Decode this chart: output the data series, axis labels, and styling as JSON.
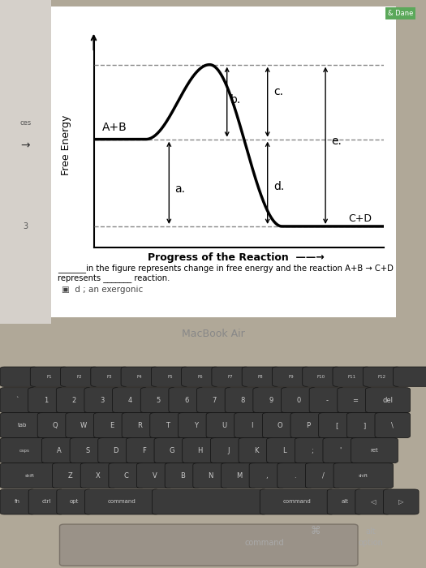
{
  "ylabel": "Free Energy",
  "xlabel": "Progress of the Reaction",
  "bg_color": "#ffffff",
  "curve_color": "#000000",
  "dash_color": "#888888",
  "text_color": "#000000",
  "levels": {
    "AB": 0.52,
    "peak": 0.88,
    "CD": 0.1
  },
  "labels": {
    "AB": "A+B",
    "CD": "C+D",
    "a": "a.",
    "b": "b.",
    "c": "c.",
    "d": "d.",
    "e": "e."
  },
  "screen_bg": "#e8e4e0",
  "laptop_body": "#b0a898",
  "keyboard_bg": "#2a2a2a",
  "key_color": "#3a3a3a",
  "key_text": "#cccccc",
  "bezel_color": "#1a1a1a",
  "macbook_label": "MacBook Air",
  "answer_text": "d ; an exergonic",
  "body_text1": "_______in the figure represents change in free energy and the reaction A+B → C+D",
  "body_text2": "represents _______ reaction.",
  "page_bg": "#f0eeec"
}
